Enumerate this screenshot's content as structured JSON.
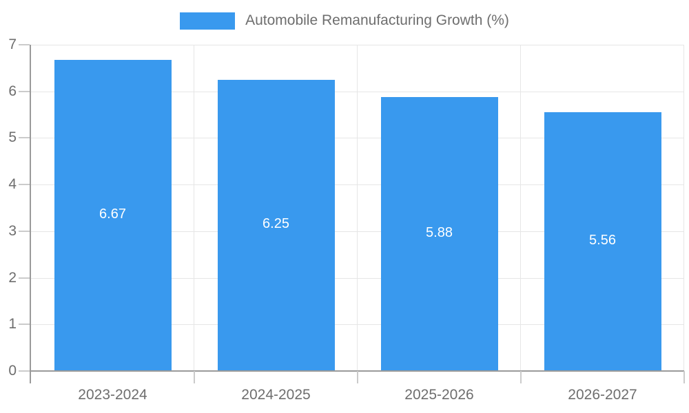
{
  "chart_data": {
    "type": "bar",
    "title": "Automobile Remanufacturing Growth (%)",
    "categories": [
      "2023-2024",
      "2024-2025",
      "2025-2026",
      "2026-2027"
    ],
    "values": [
      6.67,
      6.25,
      5.88,
      5.56
    ],
    "value_labels": [
      "6.67",
      "6.25",
      "5.88",
      "5.56"
    ],
    "xlabel": "",
    "ylabel": "",
    "ylim": [
      0,
      7
    ],
    "yticks": [
      0,
      1,
      2,
      3,
      4,
      5,
      6,
      7
    ],
    "grid": true,
    "legend_position": "top",
    "bar_label_position": "inside-center",
    "colors": {
      "bar": "#3999EE",
      "grid": "#e6e6e6",
      "axis": "#9a9a9a",
      "tick": "#cbcbcb",
      "text": "#6e6e6e",
      "bar_label": "#ffffff"
    }
  }
}
